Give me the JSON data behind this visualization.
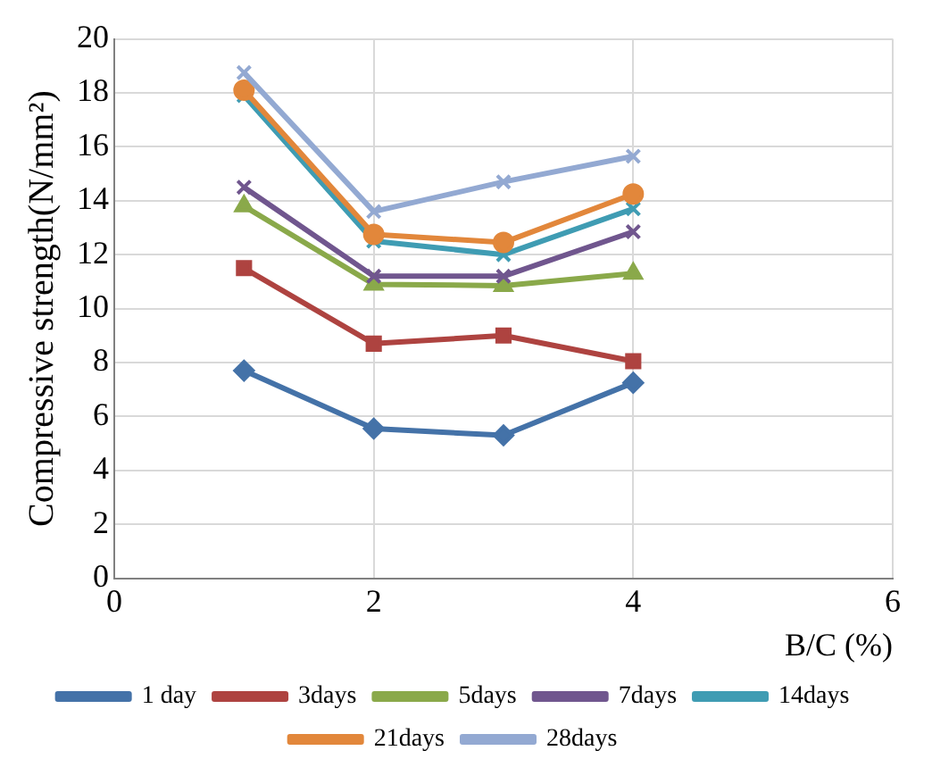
{
  "chart_data": {
    "type": "line",
    "xlabel": "B/C (%)",
    "ylabel": "Compressive strength(N/mm²)",
    "x": [
      1,
      2,
      3,
      4
    ],
    "xlim": [
      0,
      6
    ],
    "xticks": [
      0,
      2,
      4,
      6
    ],
    "ylim": [
      0,
      20
    ],
    "yticks": [
      0,
      2,
      4,
      6,
      8,
      10,
      12,
      14,
      16,
      18,
      20
    ],
    "grid": true,
    "legend": "bottom",
    "line_style": "solid",
    "series": [
      {
        "name": "1 day",
        "color": "#4472a8",
        "marker": "diamond",
        "values": [
          7.7,
          5.55,
          5.3,
          7.25
        ]
      },
      {
        "name": "3days",
        "color": "#ae4340",
        "marker": "square",
        "values": [
          11.5,
          8.7,
          9.0,
          8.05
        ]
      },
      {
        "name": "5days",
        "color": "#8aa94a",
        "marker": "triangle",
        "values": [
          13.8,
          10.9,
          10.85,
          11.3
        ]
      },
      {
        "name": "7days",
        "color": "#70568e",
        "marker": "cross",
        "values": [
          14.5,
          11.2,
          11.2,
          12.85
        ]
      },
      {
        "name": "14days",
        "color": "#3f9cb3",
        "marker": "cross",
        "values": [
          17.9,
          12.5,
          12.0,
          13.7
        ]
      },
      {
        "name": "21days",
        "color": "#e2873b",
        "marker": "circle",
        "values": [
          18.1,
          12.75,
          12.45,
          14.25
        ]
      },
      {
        "name": "28days",
        "color": "#93a9d2",
        "marker": "cross",
        "values": [
          18.75,
          13.6,
          14.7,
          15.65
        ]
      }
    ]
  }
}
